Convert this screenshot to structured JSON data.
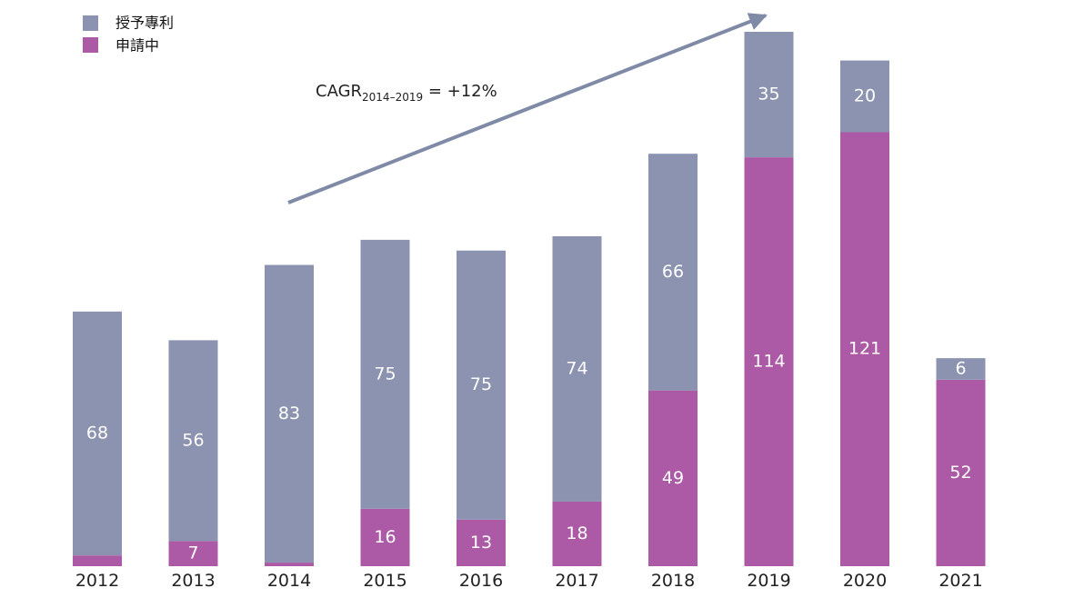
{
  "chart_data": {
    "type": "bar",
    "stacked": true,
    "categories": [
      "2012",
      "2013",
      "2014",
      "2015",
      "2016",
      "2017",
      "2018",
      "2019",
      "2020",
      "2021"
    ],
    "series": [
      {
        "name": "申請中",
        "color": "#AC5AA6",
        "values": [
          3,
          7,
          1,
          16,
          13,
          18,
          49,
          114,
          121,
          52
        ],
        "labels": [
          "",
          "7",
          "",
          "16",
          "13",
          "18",
          "49",
          "114",
          "121",
          "52"
        ]
      },
      {
        "name": "授予專利",
        "color": "#8B93B0",
        "values": [
          68,
          56,
          83,
          75,
          75,
          74,
          66,
          35,
          20,
          6
        ],
        "labels": [
          "68",
          "56",
          "83",
          "75",
          "75",
          "74",
          "66",
          "35",
          "20",
          "6"
        ]
      }
    ],
    "legend": [
      {
        "label": "授予專利",
        "color": "#8B93B0"
      },
      {
        "label": "申請中",
        "color": "#AC5AA6"
      }
    ],
    "legend_position": "top-left",
    "annotation": {
      "text_main": "CAGR",
      "text_sub": "2014–2019",
      "text_after": " = +12%",
      "arrow_from": "2014",
      "arrow_to": "2019",
      "arrow_color": "#7F8AA6"
    },
    "ylim": [
      0,
      150
    ],
    "grid": false,
    "title": "",
    "xlabel": "",
    "ylabel": ""
  }
}
